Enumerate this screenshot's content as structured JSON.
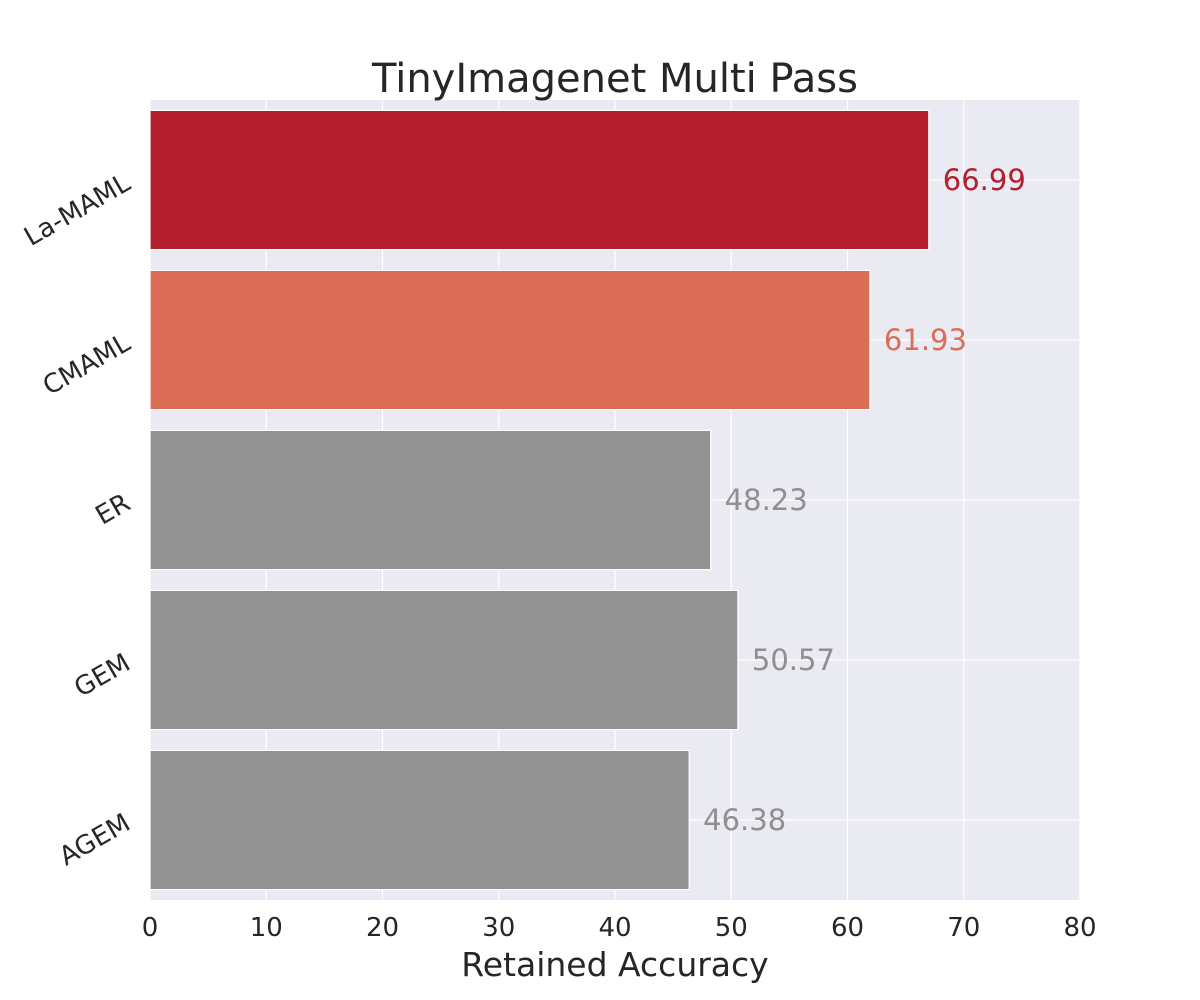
{
  "chart_data": {
    "type": "bar",
    "orientation": "horizontal",
    "title": "TinyImagenet Multi Pass",
    "xlabel": "Retained Accuracy",
    "ylabel": "",
    "categories": [
      "La-MAML",
      "CMAML",
      "ER",
      "GEM",
      "AGEM"
    ],
    "values": [
      66.99,
      61.93,
      48.23,
      50.57,
      46.38
    ],
    "value_labels": [
      "66.99",
      "61.93",
      "48.23",
      "50.57",
      "46.38"
    ],
    "colors": [
      "#b31f2e",
      "#dc6e58",
      "#929292",
      "#929292",
      "#929292"
    ],
    "label_colors": [
      "#b31f2e",
      "#dc6e58",
      "#8f8f8f",
      "#8f8f8f",
      "#8f8f8f"
    ],
    "xlim": [
      0,
      80
    ],
    "xticks": [
      0,
      10,
      20,
      30,
      40,
      50,
      60,
      70,
      80
    ],
    "xtick_labels": [
      "0",
      "10",
      "20",
      "30",
      "40",
      "50",
      "60",
      "70",
      "80"
    ],
    "grid": true,
    "legend": "none",
    "background_color": "#eaeaf2",
    "grid_color": "#ffffff"
  }
}
